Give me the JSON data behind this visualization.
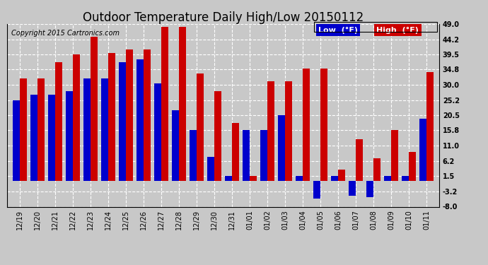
{
  "title": "Outdoor Temperature Daily High/Low 20150112",
  "copyright": "Copyright 2015 Cartronics.com",
  "legend_low": "Low  (°F)",
  "legend_high": "High  (°F)",
  "categories": [
    "12/19",
    "12/20",
    "12/21",
    "12/22",
    "12/23",
    "12/24",
    "12/25",
    "12/26",
    "12/27",
    "12/28",
    "12/29",
    "12/30",
    "12/31",
    "01/01",
    "01/02",
    "01/03",
    "01/04",
    "01/05",
    "01/06",
    "01/07",
    "01/08",
    "01/09",
    "01/10",
    "01/11"
  ],
  "low_values": [
    25.2,
    27.0,
    27.0,
    28.0,
    32.0,
    32.0,
    37.0,
    38.0,
    30.5,
    22.0,
    16.0,
    7.5,
    1.5,
    16.0,
    16.0,
    20.5,
    1.5,
    -5.5,
    1.5,
    -4.5,
    -5.0,
    1.5,
    1.5,
    19.5
  ],
  "high_values": [
    32.0,
    32.0,
    37.0,
    39.5,
    45.0,
    40.0,
    41.0,
    41.0,
    48.0,
    48.0,
    33.5,
    28.0,
    18.0,
    1.5,
    31.0,
    31.0,
    35.0,
    35.0,
    3.5,
    13.0,
    7.0,
    16.0,
    9.0,
    34.0
  ],
  "low_color": "#0000cc",
  "high_color": "#cc0000",
  "background_color": "#c8c8c8",
  "grid_color": "#ffffff",
  "ylim": [
    -8.0,
    49.0
  ],
  "yticks": [
    -8.0,
    -3.2,
    1.5,
    6.2,
    11.0,
    15.8,
    20.5,
    25.2,
    30.0,
    34.8,
    39.5,
    44.2,
    49.0
  ],
  "title_fontsize": 12,
  "tick_fontsize": 7,
  "copyright_fontsize": 7
}
